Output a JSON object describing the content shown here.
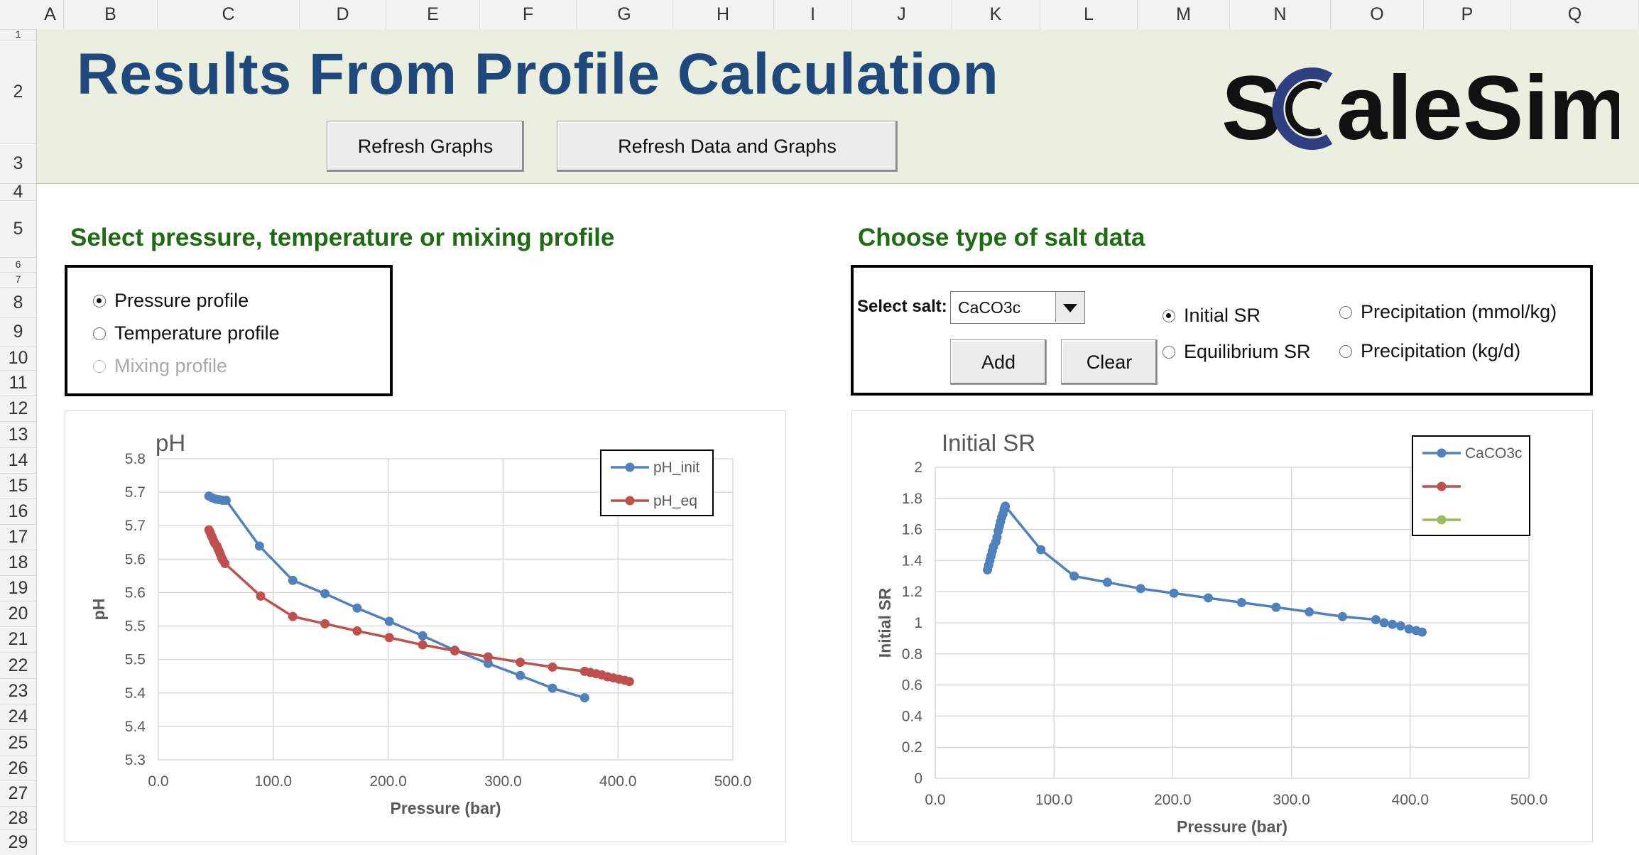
{
  "spreadsheet": {
    "columns": [
      "A",
      "B",
      "C",
      "D",
      "E",
      "F",
      "G",
      "H",
      "I",
      "J",
      "K",
      "L",
      "M",
      "N",
      "O",
      "P",
      "Q"
    ],
    "rows": [
      "1",
      "2",
      "3",
      "4",
      "5",
      "6",
      "7",
      "8",
      "9",
      "10",
      "11",
      "12",
      "13",
      "14",
      "15",
      "16",
      "17",
      "18",
      "19",
      "20",
      "21",
      "22",
      "23",
      "24",
      "25",
      "26",
      "27",
      "28",
      "29"
    ]
  },
  "header": {
    "title": "Results From Profile Calculation",
    "refresh_graphs_label": "Refresh Graphs",
    "refresh_data_label": "Refresh Data and Graphs",
    "logo_text": "ScaleSim",
    "logo_colors": {
      "text": "#111111",
      "accent": "#2f3f7f"
    }
  },
  "profile_panel": {
    "title": "Select pressure, temperature or mixing profile",
    "options": [
      {
        "label": "Pressure profile",
        "checked": true,
        "disabled": false
      },
      {
        "label": "Temperature profile",
        "checked": false,
        "disabled": false
      },
      {
        "label": "Mixing profile",
        "checked": false,
        "disabled": true
      }
    ]
  },
  "salt_panel": {
    "title": "Choose type of salt data",
    "select_label": "Select salt:",
    "selected_salt": "CaCO3c",
    "add_label": "Add",
    "clear_label": "Clear",
    "options": [
      {
        "label": "Initial SR",
        "checked": true
      },
      {
        "label": "Equilibrium SR",
        "checked": false
      },
      {
        "label": "Precipitation (mmol/kg)",
        "checked": false
      },
      {
        "label": "Precipitation (kg/d)",
        "checked": false
      }
    ]
  },
  "colors": {
    "title_blue": "#1f497d",
    "section_green": "#1e6b14",
    "banner_bg": "#ebefdf",
    "series_blue": "#4f81bd",
    "series_red": "#c0504d",
    "series_green": "#9bbb59"
  },
  "chart_data": [
    {
      "type": "line",
      "title": "pH",
      "xlabel": "Pressure (bar)",
      "ylabel": "pH",
      "xlim": [
        0,
        500
      ],
      "ylim": [
        5.3,
        5.8
      ],
      "x_ticks": [
        "0.0",
        "100.0",
        "200.0",
        "300.0",
        "400.0",
        "500.0"
      ],
      "y_ticks": [
        "5.3",
        "5.4",
        "5.4",
        "5.5",
        "5.5",
        "5.6",
        "5.6",
        "5.7",
        "5.7",
        "5.8"
      ],
      "grid": true,
      "legend": "top-right",
      "series": [
        {
          "name": "pH_init",
          "color": "#4f81bd",
          "x": [
            44,
            47,
            50,
            53,
            56,
            59,
            88,
            117,
            145,
            173,
            201,
            230,
            258,
            287,
            315,
            343,
            371
          ],
          "y": [
            5.738,
            5.735,
            5.733,
            5.732,
            5.731,
            5.731,
            5.655,
            5.598,
            5.576,
            5.552,
            5.53,
            5.506,
            5.482,
            5.46,
            5.44,
            5.419,
            5.403
          ]
        },
        {
          "name": "pH_eq",
          "color": "#c0504d",
          "x": [
            44,
            45,
            46,
            47,
            48,
            49,
            51,
            52,
            53,
            54,
            55,
            56,
            58,
            89,
            117,
            145,
            173,
            201,
            230,
            258,
            287,
            315,
            343,
            371,
            376,
            381,
            386,
            391,
            396,
            401,
            406,
            410
          ],
          "y": [
            5.682,
            5.678,
            5.673,
            5.669,
            5.664,
            5.66,
            5.655,
            5.65,
            5.646,
            5.641,
            5.636,
            5.632,
            5.626,
            5.572,
            5.538,
            5.526,
            5.514,
            5.503,
            5.491,
            5.481,
            5.471,
            5.462,
            5.454,
            5.447,
            5.445,
            5.443,
            5.441,
            5.438,
            5.436,
            5.434,
            5.432,
            5.43
          ]
        }
      ]
    },
    {
      "type": "line",
      "title": "Initial SR",
      "xlabel": "Pressure (bar)",
      "ylabel": "Initial SR",
      "xlim": [
        0,
        500
      ],
      "ylim": [
        0,
        2
      ],
      "x_ticks": [
        "0.0",
        "100.0",
        "200.0",
        "300.0",
        "400.0",
        "500.0"
      ],
      "y_ticks": [
        "0",
        "0.2",
        "0.4",
        "0.6",
        "0.8",
        "1",
        "1.2",
        "1.4",
        "1.6",
        "1.8",
        "2"
      ],
      "grid": true,
      "legend": "top-right",
      "series": [
        {
          "name": "CaCO3c",
          "color": "#4f81bd",
          "x": [
            44,
            45,
            46,
            47,
            48,
            49,
            51,
            52,
            53,
            54,
            55,
            56,
            57,
            58,
            59,
            89,
            117,
            145,
            173,
            201,
            230,
            258,
            287,
            315,
            343,
            371,
            378,
            385,
            392,
            399,
            405,
            410
          ],
          "y": [
            1.34,
            1.37,
            1.4,
            1.43,
            1.46,
            1.49,
            1.52,
            1.55,
            1.59,
            1.62,
            1.65,
            1.68,
            1.7,
            1.73,
            1.75,
            1.47,
            1.3,
            1.26,
            1.22,
            1.19,
            1.16,
            1.13,
            1.1,
            1.07,
            1.04,
            1.02,
            1.0,
            0.99,
            0.98,
            0.96,
            0.95,
            0.94
          ]
        },
        {
          "name": "",
          "color": "#c0504d",
          "x": [],
          "y": []
        },
        {
          "name": "",
          "color": "#9bbb59",
          "x": [],
          "y": []
        }
      ]
    }
  ]
}
